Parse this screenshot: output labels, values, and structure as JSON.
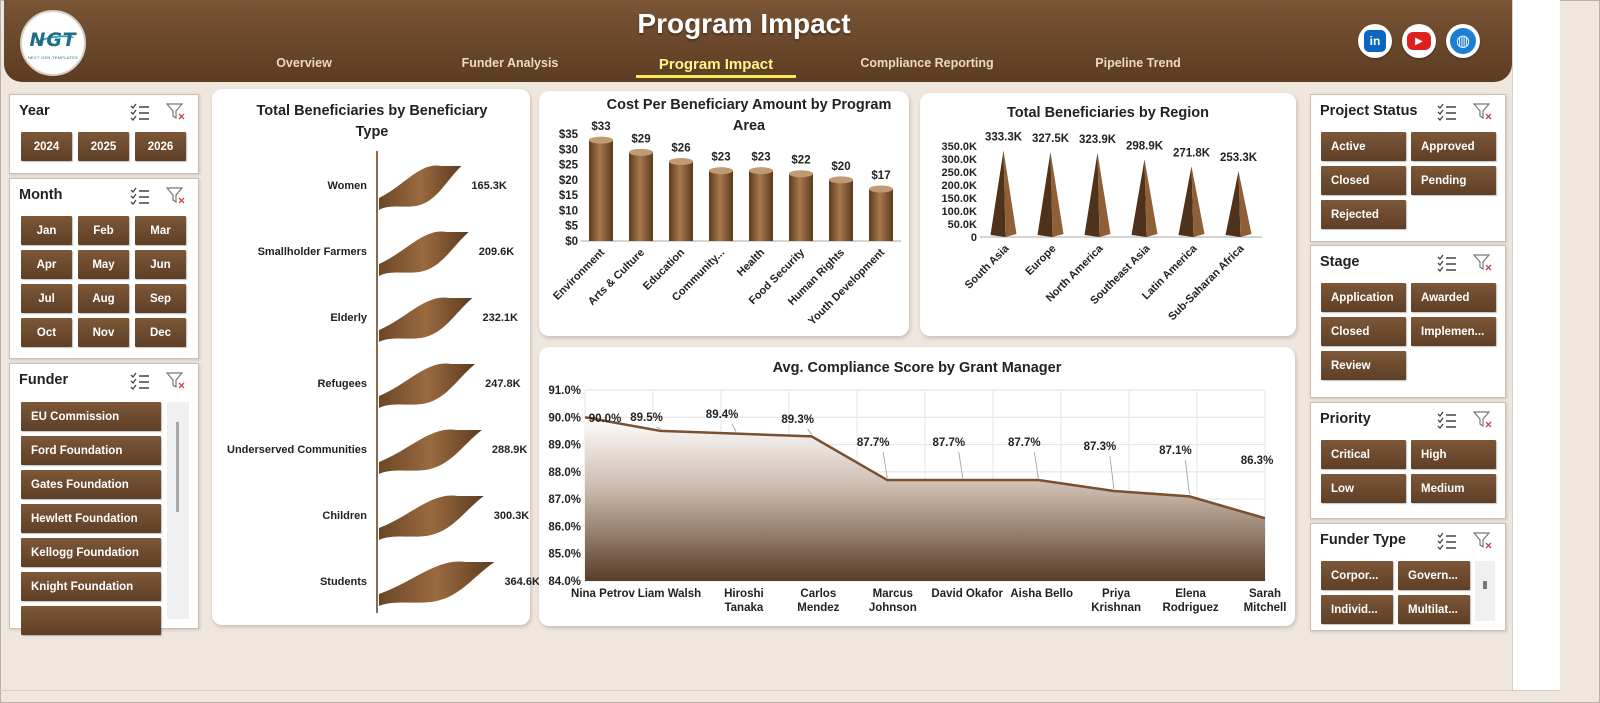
{
  "header": {
    "title": "Program Impact",
    "logo_text": "NGT",
    "logo_sub": "NEXT GEN TEMPLATES",
    "tabs": [
      {
        "label": "Overview"
      },
      {
        "label": "Funder Analysis"
      },
      {
        "label": "Program Impact",
        "active": true
      },
      {
        "label": "Compliance Reporting"
      },
      {
        "label": "Pipeline Trend"
      }
    ],
    "social": [
      {
        "icon": "linkedin-icon",
        "glyph": "in",
        "color": "#0a66c2"
      },
      {
        "icon": "youtube-icon",
        "glyph": "▶",
        "color": "#e01f1f"
      },
      {
        "icon": "globe-icon",
        "glyph": "◍",
        "color": "#1c7fd6"
      }
    ]
  },
  "slicers": {
    "year": {
      "title": "Year",
      "items": [
        "2024",
        "2025",
        "2026"
      ]
    },
    "month": {
      "title": "Month",
      "items": [
        "Jan",
        "Feb",
        "Mar",
        "Apr",
        "May",
        "Jun",
        "Jul",
        "Aug",
        "Sep",
        "Oct",
        "Nov",
        "Dec"
      ]
    },
    "funder": {
      "title": "Funder",
      "items": [
        "EU Commission",
        "Ford Foundation",
        "Gates Foundation",
        "Hewlett Foundation",
        "Kellogg Foundation",
        "Knight Foundation",
        ""
      ]
    },
    "project_status": {
      "title": "Project Status",
      "items": [
        "Active",
        "Approved",
        "Closed",
        "Pending",
        "Rejected"
      ]
    },
    "stage": {
      "title": "Stage",
      "items": [
        "Application",
        "Awarded",
        "Closed",
        "Implemen...",
        "Review"
      ]
    },
    "priority": {
      "title": "Priority",
      "items": [
        "Critical",
        "High",
        "Low",
        "Medium"
      ]
    },
    "funder_type": {
      "title": "Funder Type",
      "items": [
        "Corpor...",
        "Govern...",
        "Individ...",
        "Multilat..."
      ]
    }
  },
  "colors": {
    "brand": "#6b4a2f",
    "accent": "#f4ec56"
  },
  "chart_data": [
    {
      "type": "bar",
      "title": "Total Beneficiaries by Beneficiary Type",
      "orientation": "horizontal",
      "categories": [
        "Women",
        "Smallholder Farmers",
        "Elderly",
        "Refugees",
        "Underserved Communities",
        "Children",
        "Students"
      ],
      "values": [
        165300,
        209600,
        232100,
        247800,
        288900,
        300300,
        364600
      ],
      "data_labels": [
        "165.3K",
        "209.6K",
        "232.1K",
        "247.8K",
        "288.9K",
        "300.3K",
        "364.6K"
      ]
    },
    {
      "type": "bar",
      "title": "Cost Per Beneficiary Amount by Program Area",
      "categories": [
        "Environment",
        "Arts & Culture",
        "Education",
        "Community...",
        "Health",
        "Food Security",
        "Human Rights",
        "Youth Development"
      ],
      "values": [
        33,
        29,
        26,
        23,
        23,
        22,
        20,
        17
      ],
      "data_labels": [
        "$33",
        "$29",
        "$26",
        "$23",
        "$23",
        "$22",
        "$20",
        "$17"
      ],
      "yticks": [
        "$0",
        "$5",
        "$10",
        "$15",
        "$20",
        "$25",
        "$30",
        "$35"
      ],
      "ylim": [
        0,
        35
      ]
    },
    {
      "type": "bar",
      "title": "Total Beneficiaries by Region",
      "categories": [
        "South Asia",
        "Europe",
        "North America",
        "Southeast Asia",
        "Latin America",
        "Sub-Saharan Africa"
      ],
      "values": [
        333300,
        327500,
        323900,
        298900,
        271800,
        253300
      ],
      "data_labels": [
        "333.3K",
        "327.5K",
        "323.9K",
        "298.9K",
        "271.8K",
        "253.3K"
      ],
      "yticks": [
        "0",
        "50.0K",
        "100.0K",
        "150.0K",
        "200.0K",
        "250.0K",
        "300.0K",
        "350.0K"
      ],
      "ylim": [
        0,
        350000
      ]
    },
    {
      "type": "area",
      "title": "Avg. Compliance Score by Grant Manager",
      "categories": [
        "Nina Petrov",
        "Liam Walsh",
        "Hiroshi Tanaka",
        "Carlos Mendez",
        "Marcus Johnson",
        "David Okafor",
        "Aisha Bello",
        "Priya Krishnan",
        "Elena Rodriguez",
        "Sarah Mitchell"
      ],
      "values": [
        90.0,
        89.5,
        89.4,
        89.3,
        87.7,
        87.7,
        87.7,
        87.3,
        87.1,
        86.3
      ],
      "data_labels": [
        "90.0%",
        "89.5%",
        "89.4%",
        "89.3%",
        "87.7%",
        "87.7%",
        "87.7%",
        "87.3%",
        "87.1%",
        "86.3%"
      ],
      "yticks": [
        "84.0%",
        "85.0%",
        "86.0%",
        "87.0%",
        "88.0%",
        "89.0%",
        "90.0%",
        "91.0%"
      ],
      "ylim": [
        84,
        91
      ],
      "grid": true
    }
  ]
}
